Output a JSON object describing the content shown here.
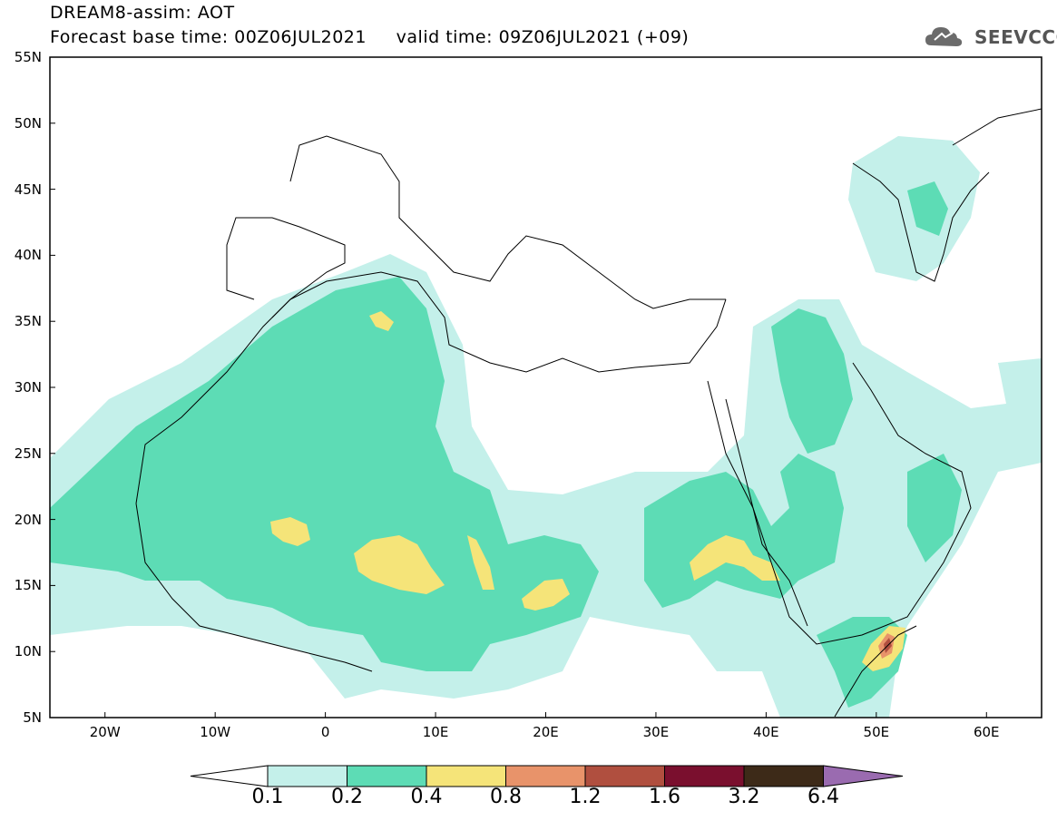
{
  "header": {
    "line1": "DREAM8-assim: AOT",
    "line2": "Forecast base time: 00Z06JUL2021     valid time: 09Z06JUL2021 (+09)",
    "logo_text": "SEEVCCC"
  },
  "map": {
    "extent": {
      "lon_min": -25,
      "lon_max": 65,
      "lat_min": 5,
      "lat_max": 55
    },
    "lat_labels": [
      {
        "lat": 55,
        "label": "55N"
      },
      {
        "lat": 50,
        "label": "50N"
      },
      {
        "lat": 45,
        "label": "45N"
      },
      {
        "lat": 40,
        "label": "40N"
      },
      {
        "lat": 35,
        "label": "35N"
      },
      {
        "lat": 30,
        "label": "30N"
      },
      {
        "lat": 25,
        "label": "25N"
      },
      {
        "lat": 20,
        "label": "20N"
      },
      {
        "lat": 15,
        "label": "15N"
      },
      {
        "lat": 10,
        "label": "10N"
      },
      {
        "lat": 5,
        "label": "5N"
      }
    ],
    "lon_labels": [
      {
        "lon": -20,
        "label": "20W"
      },
      {
        "lon": -10,
        "label": "10W"
      },
      {
        "lon": 0,
        "label": "0"
      },
      {
        "lon": 10,
        "label": "10E"
      },
      {
        "lon": 20,
        "label": "20E"
      },
      {
        "lon": 30,
        "label": "30E"
      },
      {
        "lon": 40,
        "label": "40E"
      },
      {
        "lon": 50,
        "label": "50E"
      },
      {
        "lon": 60,
        "label": "60E"
      }
    ]
  },
  "colorbar": {
    "colors": [
      "#c4f0ea",
      "#5ddcb5",
      "#f5e479",
      "#e8936a",
      "#b04f3f",
      "#7a0f2e",
      "#3d2a18"
    ],
    "under_color": "#ffffff",
    "over_color": "#9a6bb0",
    "labels": [
      "0.1",
      "0.2",
      "0.4",
      "0.8",
      "1.2",
      "1.6",
      "3.2",
      "6.4"
    ]
  }
}
